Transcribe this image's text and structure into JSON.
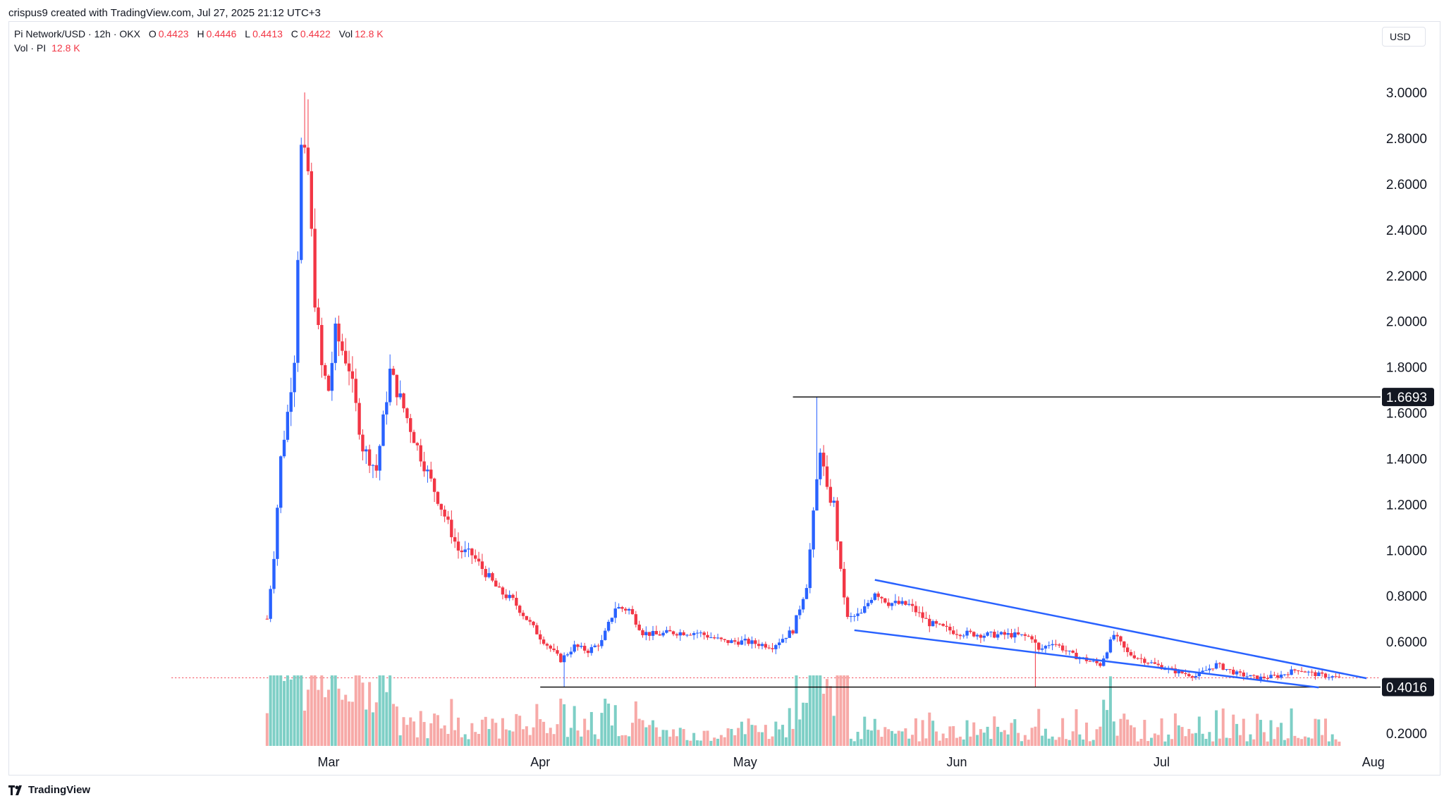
{
  "header": {
    "credit": "crispus9 created with TradingView.com, Jul 27, 2025 21:12 UTC+3",
    "symbol": "Pi Network/USD · 12h · OKX",
    "open_label": "O",
    "open": "0.4423",
    "high_label": "H",
    "high": "0.4446",
    "low_label": "L",
    "low": "0.4413",
    "close_label": "C",
    "close": "0.4422",
    "vol_label": "Vol",
    "vol": "12.8 K",
    "vol_row_label": "Vol · PI",
    "vol_row_value": "12.8 K",
    "currency": "USD"
  },
  "brand": "TradingView",
  "colors": {
    "up": "#2962ff",
    "down": "#f23645",
    "vol_up": "#7ecfc6",
    "vol_down": "#f7a9a7",
    "trend": "#2962ff",
    "level": "#000000"
  },
  "chart_data": {
    "type": "candlestick",
    "title": "Pi Network/USD · 12h · OKX",
    "ylim": [
      0.14,
      3.2
    ],
    "y_ticks": [
      "0.2000",
      "0.4000",
      "0.6000",
      "0.8000",
      "1.0000",
      "1.2000",
      "1.4000",
      "1.6000",
      "1.8000",
      "2.0000",
      "2.2000",
      "2.4000",
      "2.6000",
      "2.8000",
      "3.0000"
    ],
    "y_tick_values": [
      0.2,
      0.4,
      0.6,
      0.8,
      1.0,
      1.2,
      1.4,
      1.6,
      1.8,
      2.0,
      2.2,
      2.4,
      2.6,
      2.8,
      3.0
    ],
    "x_ticks": [
      "Mar",
      "Apr",
      "May",
      "Jun",
      "Jul",
      "Aug"
    ],
    "x_tick_dates": [
      "2025-03-01",
      "2025-04-01",
      "2025-05-01",
      "2025-06-01",
      "2025-07-01",
      "2025-08-01"
    ],
    "x_range": [
      "2025-02-20",
      "2025-08-01"
    ],
    "levels": [
      {
        "label": "1.6693",
        "value": 1.6693,
        "from": "2025-05-08"
      },
      {
        "label": "0.4016",
        "value": 0.4016,
        "from": "2025-04-01"
      }
    ],
    "last_price": 0.4422,
    "channel": {
      "upper": [
        [
          "2025-05-20",
          0.87
        ],
        [
          "2025-07-31",
          0.44
        ]
      ],
      "lower": [
        [
          "2025-05-17",
          0.65
        ],
        [
          "2025-07-24",
          0.4
        ]
      ]
    },
    "anchors": [
      [
        "2025-02-20",
        0.7
      ],
      [
        "2025-02-21",
        0.98
      ],
      [
        "2025-02-22",
        1.4
      ],
      [
        "2025-02-23",
        1.6
      ],
      [
        "2025-02-24",
        1.85
      ],
      [
        "2025-02-25",
        2.75
      ],
      [
        "2025-02-26",
        2.65
      ],
      [
        "2025-02-27",
        2.1
      ],
      [
        "2025-02-28",
        1.8
      ],
      [
        "2025-03-01",
        1.7
      ],
      [
        "2025-03-02",
        1.95
      ],
      [
        "2025-03-04",
        1.8
      ],
      [
        "2025-03-06",
        1.45
      ],
      [
        "2025-03-08",
        1.35
      ],
      [
        "2025-03-10",
        1.78
      ],
      [
        "2025-03-12",
        1.62
      ],
      [
        "2025-03-14",
        1.45
      ],
      [
        "2025-03-16",
        1.3
      ],
      [
        "2025-03-18",
        1.15
      ],
      [
        "2025-03-20",
        1.0
      ],
      [
        "2025-03-22",
        0.98
      ],
      [
        "2025-03-24",
        0.9
      ],
      [
        "2025-03-26",
        0.82
      ],
      [
        "2025-03-28",
        0.78
      ],
      [
        "2025-03-30",
        0.7
      ],
      [
        "2025-04-01",
        0.62
      ],
      [
        "2025-04-04",
        0.52
      ],
      [
        "2025-04-06",
        0.58
      ],
      [
        "2025-04-08",
        0.56
      ],
      [
        "2025-04-10",
        0.6
      ],
      [
        "2025-04-12",
        0.75
      ],
      [
        "2025-04-14",
        0.74
      ],
      [
        "2025-04-16",
        0.64
      ],
      [
        "2025-04-18",
        0.63
      ],
      [
        "2025-04-20",
        0.64
      ],
      [
        "2025-04-24",
        0.64
      ],
      [
        "2025-04-28",
        0.6
      ],
      [
        "2025-05-01",
        0.6
      ],
      [
        "2025-05-05",
        0.58
      ],
      [
        "2025-05-08",
        0.65
      ],
      [
        "2025-05-10",
        0.85
      ],
      [
        "2025-05-12",
        1.45
      ],
      [
        "2025-05-13",
        1.25
      ],
      [
        "2025-05-14",
        1.2
      ],
      [
        "2025-05-15",
        0.9
      ],
      [
        "2025-05-16",
        0.7
      ],
      [
        "2025-05-18",
        0.72
      ],
      [
        "2025-05-20",
        0.82
      ],
      [
        "2025-05-22",
        0.77
      ],
      [
        "2025-05-25",
        0.76
      ],
      [
        "2025-05-28",
        0.68
      ],
      [
        "2025-06-01",
        0.64
      ],
      [
        "2025-06-05",
        0.63
      ],
      [
        "2025-06-09",
        0.63
      ],
      [
        "2025-06-12",
        0.62
      ],
      [
        "2025-06-13",
        0.56
      ],
      [
        "2025-06-15",
        0.6
      ],
      [
        "2025-06-18",
        0.54
      ],
      [
        "2025-06-22",
        0.5
      ],
      [
        "2025-06-24",
        0.63
      ],
      [
        "2025-06-26",
        0.55
      ],
      [
        "2025-06-30",
        0.5
      ],
      [
        "2025-07-03",
        0.47
      ],
      [
        "2025-07-06",
        0.45
      ],
      [
        "2025-07-09",
        0.5
      ],
      [
        "2025-07-12",
        0.46
      ],
      [
        "2025-07-15",
        0.44
      ],
      [
        "2025-07-18",
        0.45
      ],
      [
        "2025-07-21",
        0.48
      ],
      [
        "2025-07-23",
        0.46
      ],
      [
        "2025-07-27",
        0.442
      ]
    ]
  }
}
